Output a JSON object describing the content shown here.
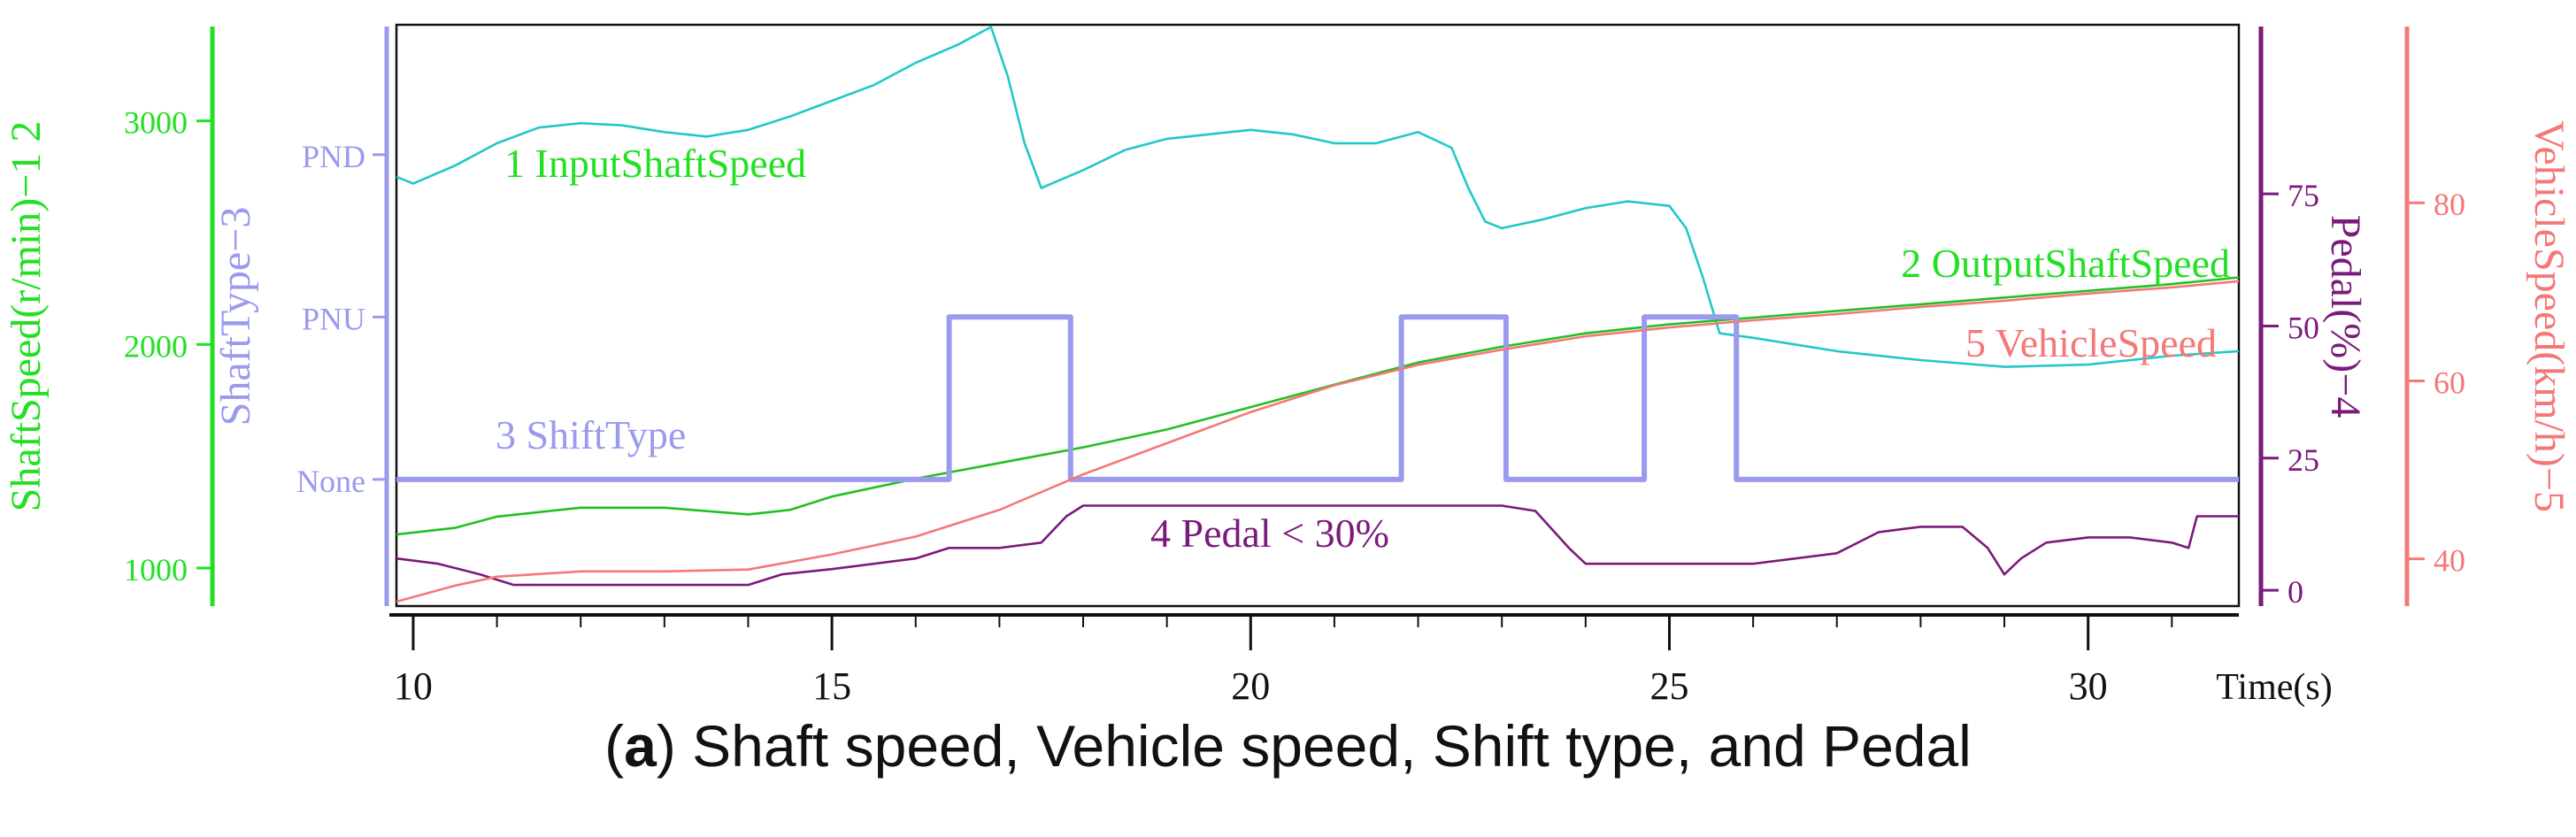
{
  "caption": {
    "label": "a",
    "open": "(",
    "close": ")",
    "text": " Shaft speed, Vehicle speed, Shift type, and Pedal"
  },
  "chart_data": {
    "type": "line",
    "x_axis": {
      "label": "Time(s)",
      "range": [
        9.8,
        31.8
      ],
      "ticks": [
        10,
        15,
        20,
        25,
        30
      ]
    },
    "axes": {
      "shaft": {
        "label": "ShaftSpeed(r/min)−1 2",
        "range": [
          830,
          3430
        ],
        "ticks": [
          1000,
          2000,
          3000
        ],
        "color": "#22e022"
      },
      "shift": {
        "label": "ShaftType−3",
        "range": [
          -0.78,
          2.8
        ],
        "ticks": [
          "None",
          "PNU",
          "PND"
        ],
        "color": "#9a9aee"
      },
      "pedal": {
        "label": "Pedal(%)−4",
        "range": [
          -3,
          107
        ],
        "ticks": [
          0,
          25,
          50,
          75
        ],
        "color": "#7b1a7b"
      },
      "vehicle": {
        "label": "VehicleSpeed(km/h)−5",
        "range": [
          34.7,
          100
        ],
        "ticks": [
          40,
          60,
          80
        ],
        "color": "#f47878"
      }
    },
    "series": [
      {
        "name": "1 InputShaftSpeed",
        "axis": "shaft",
        "color": "#22c8c8",
        "x": [
          9.8,
          10.0,
          10.5,
          11.0,
          11.5,
          12.0,
          12.5,
          13.0,
          13.5,
          14.0,
          14.5,
          15.0,
          15.5,
          16.0,
          16.5,
          16.9,
          17.1,
          17.3,
          17.5,
          18.0,
          18.5,
          19.0,
          19.5,
          20.0,
          20.5,
          21.0,
          21.5,
          22.0,
          22.4,
          22.6,
          22.8,
          23.0,
          23.5,
          24.0,
          24.5,
          25.0,
          25.2,
          25.4,
          25.6,
          26.0,
          27.0,
          28.0,
          29.0,
          30.0,
          31.0,
          31.8
        ],
        "y": [
          2750,
          2720,
          2800,
          2900,
          2970,
          2990,
          2980,
          2950,
          2930,
          2960,
          3020,
          3090,
          3160,
          3260,
          3340,
          3420,
          3200,
          2900,
          2700,
          2780,
          2870,
          2920,
          2940,
          2960,
          2940,
          2900,
          2900,
          2950,
          2880,
          2700,
          2550,
          2520,
          2560,
          2610,
          2640,
          2620,
          2520,
          2300,
          2050,
          2030,
          1970,
          1930,
          1900,
          1910,
          1950,
          1970
        ]
      },
      {
        "name": "2 OutputShaftSpeed",
        "axis": "shaft",
        "color": "#22c022",
        "x": [
          9.8,
          10.5,
          11.0,
          12.0,
          13.0,
          14.0,
          14.5,
          15.0,
          16.0,
          17.0,
          18.0,
          19.0,
          20.0,
          21.0,
          22.0,
          23.0,
          24.0,
          25.0,
          26.0,
          27.0,
          28.0,
          29.0,
          30.0,
          31.0,
          31.8
        ],
        "y": [
          1150,
          1180,
          1230,
          1270,
          1270,
          1240,
          1260,
          1320,
          1400,
          1470,
          1540,
          1620,
          1720,
          1820,
          1920,
          1990,
          2050,
          2090,
          2120,
          2150,
          2180,
          2210,
          2240,
          2270,
          2300
        ]
      },
      {
        "name": "3 ShiftType",
        "axis": "shift",
        "color": "#9a9aee",
        "x": [
          9.8,
          16.4,
          16.4,
          17.85,
          17.85,
          21.8,
          21.8,
          23.05,
          23.05,
          24.7,
          24.7,
          25.8,
          25.8,
          31.8
        ],
        "y": [
          0,
          0,
          1,
          1,
          0,
          0,
          1,
          1,
          0,
          0,
          1,
          1,
          0,
          0
        ]
      },
      {
        "name": "4 Pedal < 30%",
        "axis": "pedal",
        "color": "#7b1a7b",
        "x": [
          9.8,
          10.3,
          10.8,
          11.2,
          12.0,
          13.0,
          14.0,
          14.4,
          15.0,
          16.0,
          16.4,
          17.0,
          17.5,
          17.8,
          18.0,
          18.5,
          19.0,
          20.0,
          21.0,
          22.0,
          23.0,
          23.4,
          23.8,
          24.0,
          25.0,
          26.0,
          27.0,
          27.5,
          28.0,
          28.5,
          28.8,
          29.0,
          29.2,
          29.5,
          30.0,
          30.5,
          31.0,
          31.2,
          31.3,
          31.8
        ],
        "y": [
          6,
          5,
          3,
          1,
          1,
          1,
          1,
          3,
          4,
          6,
          8,
          8,
          9,
          14,
          16,
          16,
          16,
          16,
          16,
          16,
          16,
          15,
          8,
          5,
          5,
          5,
          7,
          11,
          12,
          12,
          8,
          3,
          6,
          9,
          10,
          10,
          9,
          8,
          14,
          14
        ]
      },
      {
        "name": "5 VehicleSpeed",
        "axis": "vehicle",
        "color": "#f47878",
        "x": [
          9.8,
          10.5,
          11.0,
          12.0,
          13.0,
          14.0,
          15.0,
          16.0,
          17.0,
          18.0,
          19.0,
          20.0,
          21.0,
          22.0,
          23.0,
          24.0,
          25.0,
          26.0,
          27.0,
          28.0,
          29.0,
          30.0,
          31.0,
          31.8
        ],
        "y": [
          35.2,
          37.0,
          38.0,
          38.6,
          38.6,
          38.8,
          40.5,
          42.5,
          45.5,
          49.5,
          53.0,
          56.5,
          59.5,
          61.8,
          63.5,
          65.0,
          66.0,
          66.8,
          67.5,
          68.3,
          69.0,
          69.8,
          70.5,
          71.2
        ]
      }
    ],
    "annotations": [
      {
        "text": "1 InputShaftSpeed",
        "color": "#22e022"
      },
      {
        "text": "2 OutputShaftSpeed",
        "color": "#22e022"
      },
      {
        "text": "3 ShiftType",
        "color": "#9a9aee"
      },
      {
        "text": "4 Pedal < 30%",
        "color": "#7b1a7b"
      },
      {
        "text": "5 VehicleSpeed",
        "color": "#f47878"
      }
    ]
  }
}
